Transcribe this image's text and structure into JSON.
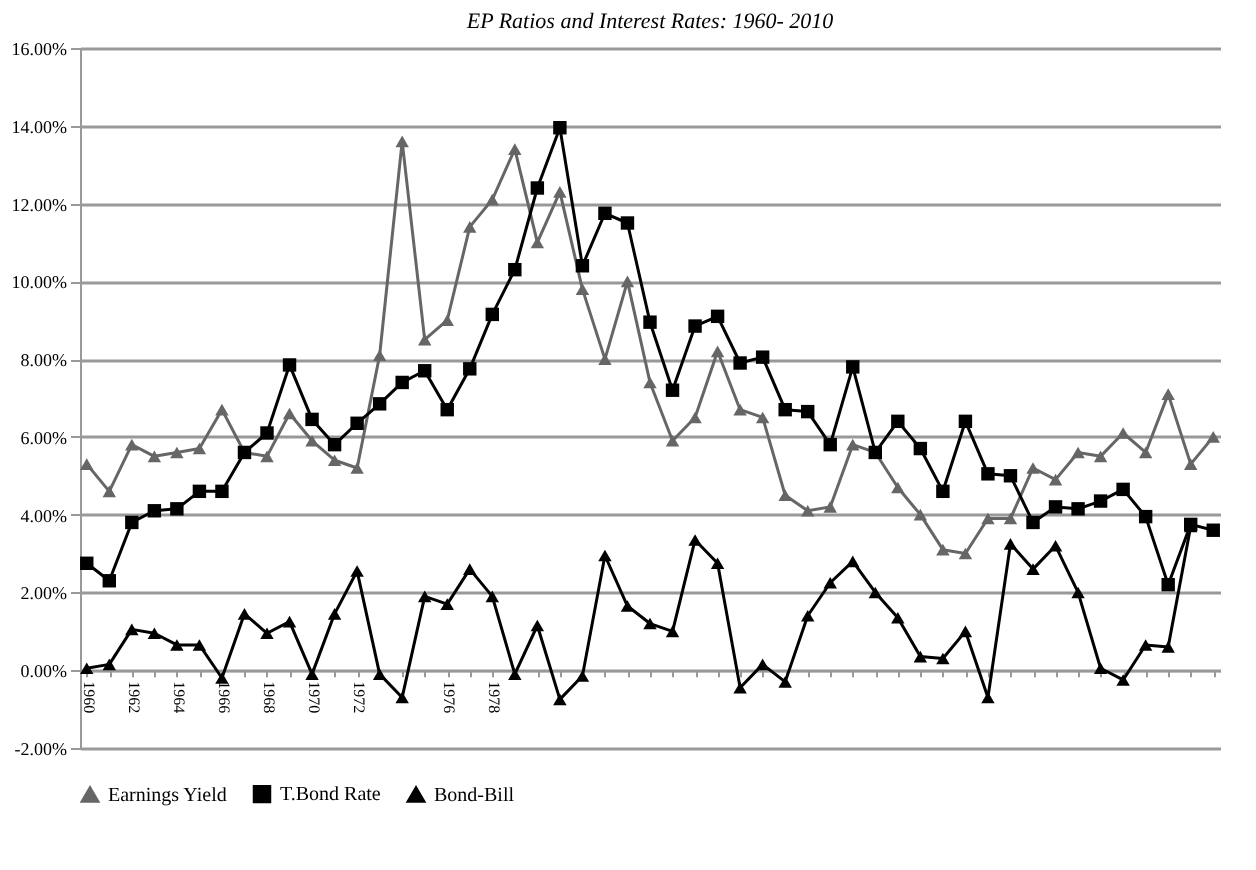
{
  "chart_data": {
    "type": "line",
    "title": "EP Ratios and Interest Rates: 1960- 2010",
    "categories": [
      "1960",
      null,
      "1962",
      null,
      "1964",
      null,
      "1966",
      null,
      "1968",
      null,
      "1970",
      null,
      "1972",
      null,
      null,
      null,
      "1976",
      null,
      "1978",
      null,
      null,
      null,
      null,
      null,
      null,
      null,
      null,
      null,
      null,
      null,
      null,
      null,
      null,
      null,
      null,
      null,
      null,
      null,
      null,
      null,
      null,
      null,
      null,
      null,
      null,
      null,
      null,
      null,
      null,
      null,
      null
    ],
    "series": [
      {
        "name": "Earnings Yield",
        "color": "#666666",
        "marker": "triangle",
        "values": [
          5.3,
          4.6,
          5.8,
          5.5,
          5.6,
          5.7,
          6.7,
          5.6,
          5.5,
          6.6,
          5.9,
          5.4,
          5.2,
          8.1,
          13.6,
          8.5,
          9.0,
          11.4,
          12.1,
          13.4,
          11.0,
          12.3,
          9.8,
          8.0,
          10.0,
          7.4,
          5.9,
          6.5,
          8.2,
          6.7,
          6.5,
          4.5,
          4.1,
          4.2,
          5.8,
          5.6,
          4.7,
          4.0,
          3.1,
          3.0,
          3.9,
          3.9,
          5.2,
          4.9,
          5.6,
          5.5,
          6.1,
          5.6,
          7.1,
          5.3,
          6.0
        ]
      },
      {
        "name": "T.Bond Rate",
        "color": "#000000",
        "marker": "square",
        "values": [
          2.75,
          2.3,
          3.8,
          4.1,
          4.15,
          4.6,
          4.6,
          5.6,
          6.1,
          7.85,
          6.45,
          5.8,
          6.35,
          6.85,
          7.4,
          7.7,
          6.7,
          7.75,
          9.15,
          10.3,
          12.4,
          13.95,
          10.4,
          11.75,
          11.5,
          8.95,
          7.2,
          8.85,
          9.1,
          7.9,
          8.05,
          6.7,
          6.65,
          5.8,
          7.8,
          5.6,
          6.4,
          5.7,
          4.6,
          6.4,
          5.05,
          5.0,
          3.8,
          4.2,
          4.15,
          4.35,
          4.65,
          3.95,
          2.2,
          3.75,
          3.6
        ]
      },
      {
        "name": "Bond-Bill",
        "color": "#000000",
        "marker": "triangle",
        "values": [
          0.05,
          0.15,
          1.05,
          0.95,
          0.65,
          0.65,
          -0.2,
          1.45,
          0.95,
          1.25,
          -0.1,
          1.45,
          2.55,
          -0.1,
          -0.7,
          1.9,
          1.7,
          2.6,
          1.9,
          -0.1,
          1.15,
          -0.75,
          -0.15,
          2.95,
          1.65,
          1.2,
          1.0,
          3.35,
          2.75,
          -0.45,
          0.15,
          -0.3,
          1.4,
          2.25,
          2.8,
          2.0,
          1.35,
          0.35,
          0.3,
          1.0,
          -0.7,
          3.25,
          2.6,
          3.2,
          2.0,
          0.05,
          -0.25,
          0.65,
          0.6,
          3.7,
          null
        ]
      }
    ],
    "ylim": [
      -2,
      16
    ],
    "yticks": [
      {
        "value": -2,
        "label": "-2.00%"
      },
      {
        "value": 0,
        "label": "0.00%"
      },
      {
        "value": 2,
        "label": "2.00%"
      },
      {
        "value": 4,
        "label": "4.00%"
      },
      {
        "value": 6,
        "label": "6.00%"
      },
      {
        "value": 8,
        "label": "8.00%"
      },
      {
        "value": 10,
        "label": "10.00%"
      },
      {
        "value": 12,
        "label": "12.00%"
      },
      {
        "value": 14,
        "label": "14.00%"
      },
      {
        "value": 16,
        "label": "16.00%"
      }
    ],
    "grid": "y",
    "legend": "bottom",
    "line_style": "solid"
  }
}
